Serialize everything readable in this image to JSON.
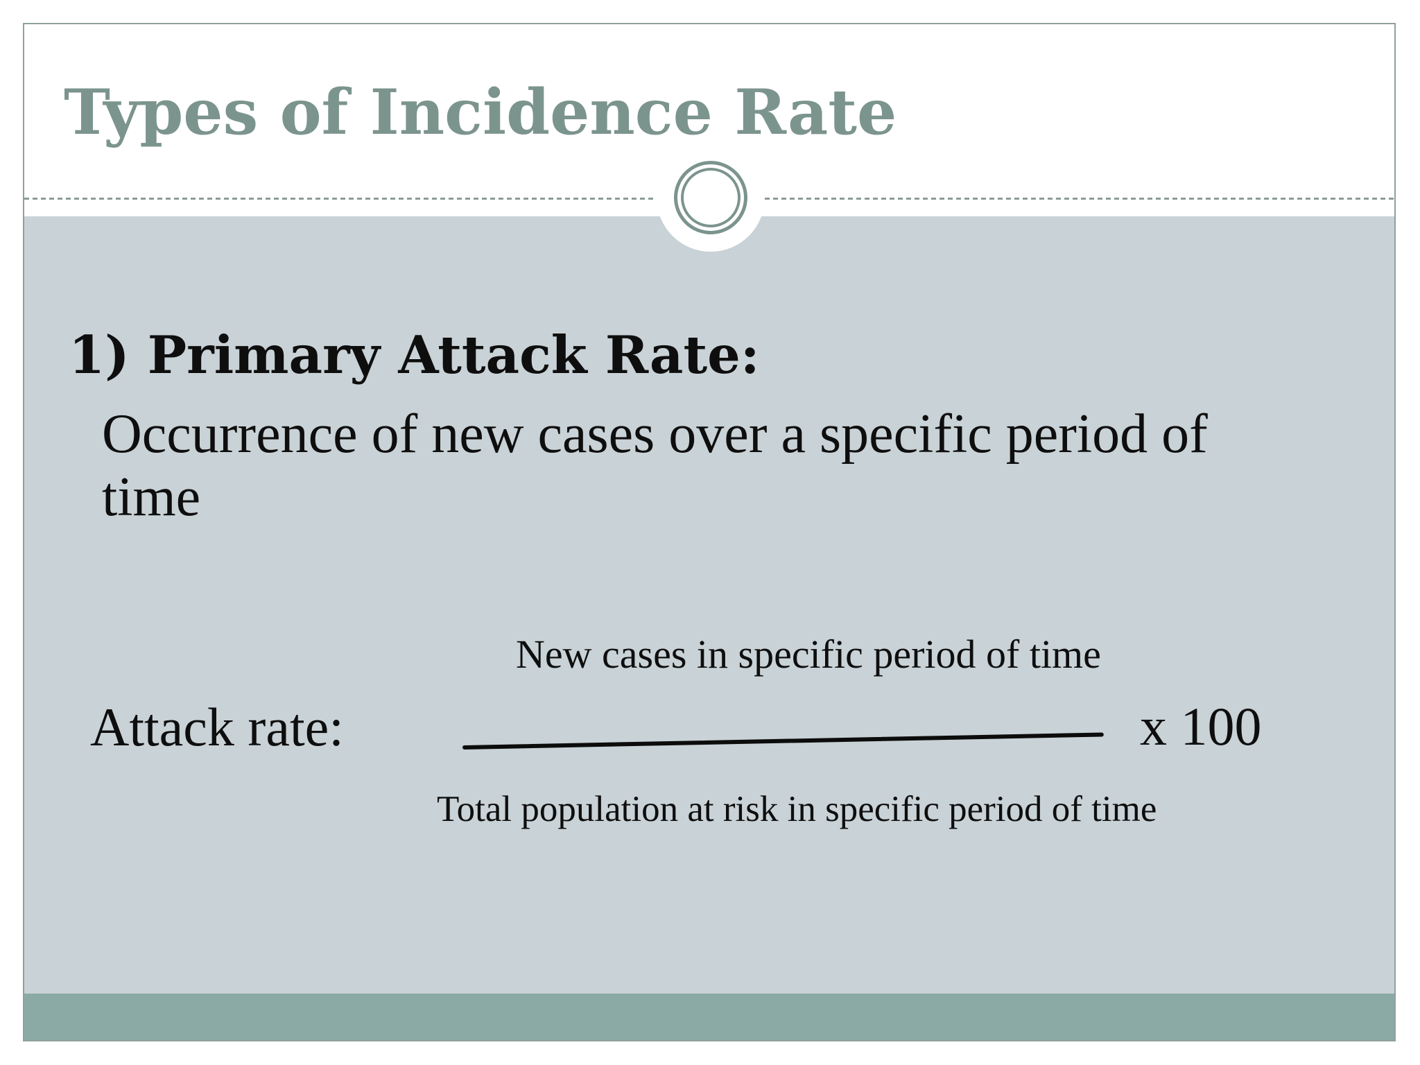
{
  "slide": {
    "title": "Types of Incidence Rate",
    "heading": "1) Primary Attack Rate:",
    "body_text": "Occurrence of new cases over a specific period of time",
    "formula": {
      "label": "Attack rate:",
      "numerator": "New cases in specific period of time",
      "denominator": "Total population at risk in specific period of time",
      "multiplier": "x 100"
    },
    "colors": {
      "title_accent": "#7c948e",
      "body_background": "#c9d2d6",
      "bottom_bar": "#8caaa5",
      "divider_dash": "#8b9c98",
      "slide_border": "#8fa09c",
      "text": "#0e0e0e"
    }
  }
}
